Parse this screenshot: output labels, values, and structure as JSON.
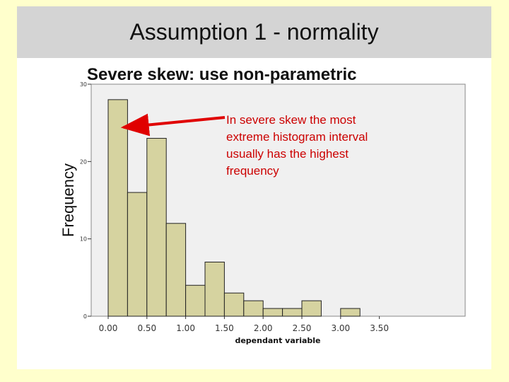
{
  "slide": {
    "title": "Assumption 1 - normality"
  },
  "chart_data": {
    "type": "bar",
    "subtype": "histogram",
    "title": "Severe skew: use non-parametric",
    "xlabel": "dependant variable",
    "ylabel": "Frequency",
    "xlim": [
      0.0,
      3.5
    ],
    "ylim": [
      0,
      30
    ],
    "x_ticks": [
      "0.00",
      "0.50",
      "1.00",
      "1.50",
      "2.00",
      "2.50",
      "3.00",
      "3.50"
    ],
    "y_ticks": [
      "0",
      "10",
      "20",
      "30"
    ],
    "bin_width": 0.25,
    "bins": [
      {
        "start": 0.0,
        "end": 0.25,
        "value": 28
      },
      {
        "start": 0.25,
        "end": 0.5,
        "value": 16
      },
      {
        "start": 0.5,
        "end": 0.75,
        "value": 23
      },
      {
        "start": 0.75,
        "end": 1.0,
        "value": 12
      },
      {
        "start": 1.0,
        "end": 1.25,
        "value": 4
      },
      {
        "start": 1.25,
        "end": 1.5,
        "value": 7
      },
      {
        "start": 1.5,
        "end": 1.75,
        "value": 3
      },
      {
        "start": 1.75,
        "end": 2.0,
        "value": 2
      },
      {
        "start": 2.0,
        "end": 2.25,
        "value": 1
      },
      {
        "start": 2.25,
        "end": 2.5,
        "value": 1
      },
      {
        "start": 2.5,
        "end": 2.75,
        "value": 2
      },
      {
        "start": 3.0,
        "end": 3.25,
        "value": 1
      }
    ],
    "grid": false,
    "annotation": {
      "text_lines": [
        "In severe skew the most",
        "extreme histogram interval",
        "usually has the highest",
        "frequency"
      ],
      "points_to_bin": 0
    },
    "colors": {
      "bar_fill": "#d6d3a0",
      "bar_stroke": "#222222",
      "plot_background": "#f0f0f0",
      "annotation_text": "#cc0000",
      "arrow": "#e00000"
    }
  }
}
